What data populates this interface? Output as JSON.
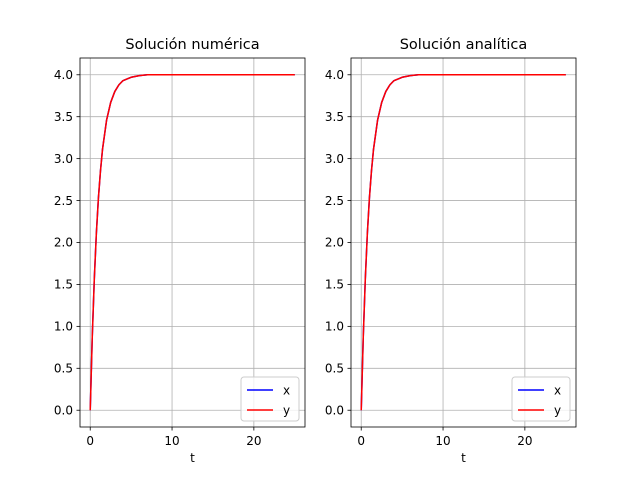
{
  "chart_data": [
    {
      "type": "line",
      "title": "Solución numérica",
      "xlabel": "t",
      "ylabel": "",
      "xlim": [
        -1.25,
        26.25
      ],
      "ylim": [
        -0.2,
        4.2
      ],
      "xticks": [
        0,
        10,
        20
      ],
      "yticks": [
        0.0,
        0.5,
        1.0,
        1.5,
        2.0,
        2.5,
        3.0,
        3.5,
        4.0
      ],
      "ytick_labels": [
        "0.0",
        "0.5",
        "1.0",
        "1.5",
        "2.0",
        "2.5",
        "3.0",
        "3.5",
        "4.0"
      ],
      "grid": true,
      "legend_position": "lower-right",
      "series": [
        {
          "name": "x",
          "color": "#0000ff",
          "x": [
            0,
            0.25,
            0.5,
            0.75,
            1,
            1.25,
            1.5,
            2,
            2.5,
            3,
            3.5,
            4,
            5,
            6,
            7,
            8,
            10,
            12,
            15,
            20,
            25
          ],
          "y": [
            0,
            0.88,
            1.57,
            2.11,
            2.53,
            2.85,
            3.11,
            3.46,
            3.67,
            3.8,
            3.88,
            3.93,
            3.97,
            3.99,
            4.0,
            4.0,
            4.0,
            4.0,
            4.0,
            4.0,
            4.0
          ]
        },
        {
          "name": "y",
          "color": "#ff0000",
          "x": [
            0,
            0.25,
            0.5,
            0.75,
            1,
            1.25,
            1.5,
            2,
            2.5,
            3,
            3.5,
            4,
            5,
            6,
            7,
            8,
            10,
            12,
            15,
            20,
            25
          ],
          "y": [
            0,
            0.88,
            1.57,
            2.11,
            2.53,
            2.85,
            3.11,
            3.46,
            3.67,
            3.8,
            3.88,
            3.93,
            3.97,
            3.99,
            4.0,
            4.0,
            4.0,
            4.0,
            4.0,
            4.0,
            4.0
          ]
        }
      ]
    },
    {
      "type": "line",
      "title": "Solución analítica",
      "xlabel": "t",
      "ylabel": "",
      "xlim": [
        -1.25,
        26.25
      ],
      "ylim": [
        -0.2,
        4.2
      ],
      "xticks": [
        0,
        10,
        20
      ],
      "yticks": [
        0.0,
        0.5,
        1.0,
        1.5,
        2.0,
        2.5,
        3.0,
        3.5,
        4.0
      ],
      "ytick_labels": [
        "0.0",
        "0.5",
        "1.0",
        "1.5",
        "2.0",
        "2.5",
        "3.0",
        "3.5",
        "4.0"
      ],
      "grid": true,
      "legend_position": "lower-right",
      "series": [
        {
          "name": "x",
          "color": "#0000ff",
          "x": [
            0,
            0.25,
            0.5,
            0.75,
            1,
            1.25,
            1.5,
            2,
            2.5,
            3,
            3.5,
            4,
            5,
            6,
            7,
            8,
            10,
            12,
            15,
            20,
            25
          ],
          "y": [
            0,
            0.88,
            1.57,
            2.11,
            2.53,
            2.85,
            3.11,
            3.46,
            3.67,
            3.8,
            3.88,
            3.93,
            3.97,
            3.99,
            4.0,
            4.0,
            4.0,
            4.0,
            4.0,
            4.0,
            4.0
          ]
        },
        {
          "name": "y",
          "color": "#ff0000",
          "x": [
            0,
            0.25,
            0.5,
            0.75,
            1,
            1.25,
            1.5,
            2,
            2.5,
            3,
            3.5,
            4,
            5,
            6,
            7,
            8,
            10,
            12,
            15,
            20,
            25
          ],
          "y": [
            0,
            0.88,
            1.57,
            2.11,
            2.53,
            2.85,
            3.11,
            3.46,
            3.67,
            3.8,
            3.88,
            3.93,
            3.97,
            3.99,
            4.0,
            4.0,
            4.0,
            4.0,
            4.0,
            4.0,
            4.0
          ]
        }
      ]
    }
  ]
}
